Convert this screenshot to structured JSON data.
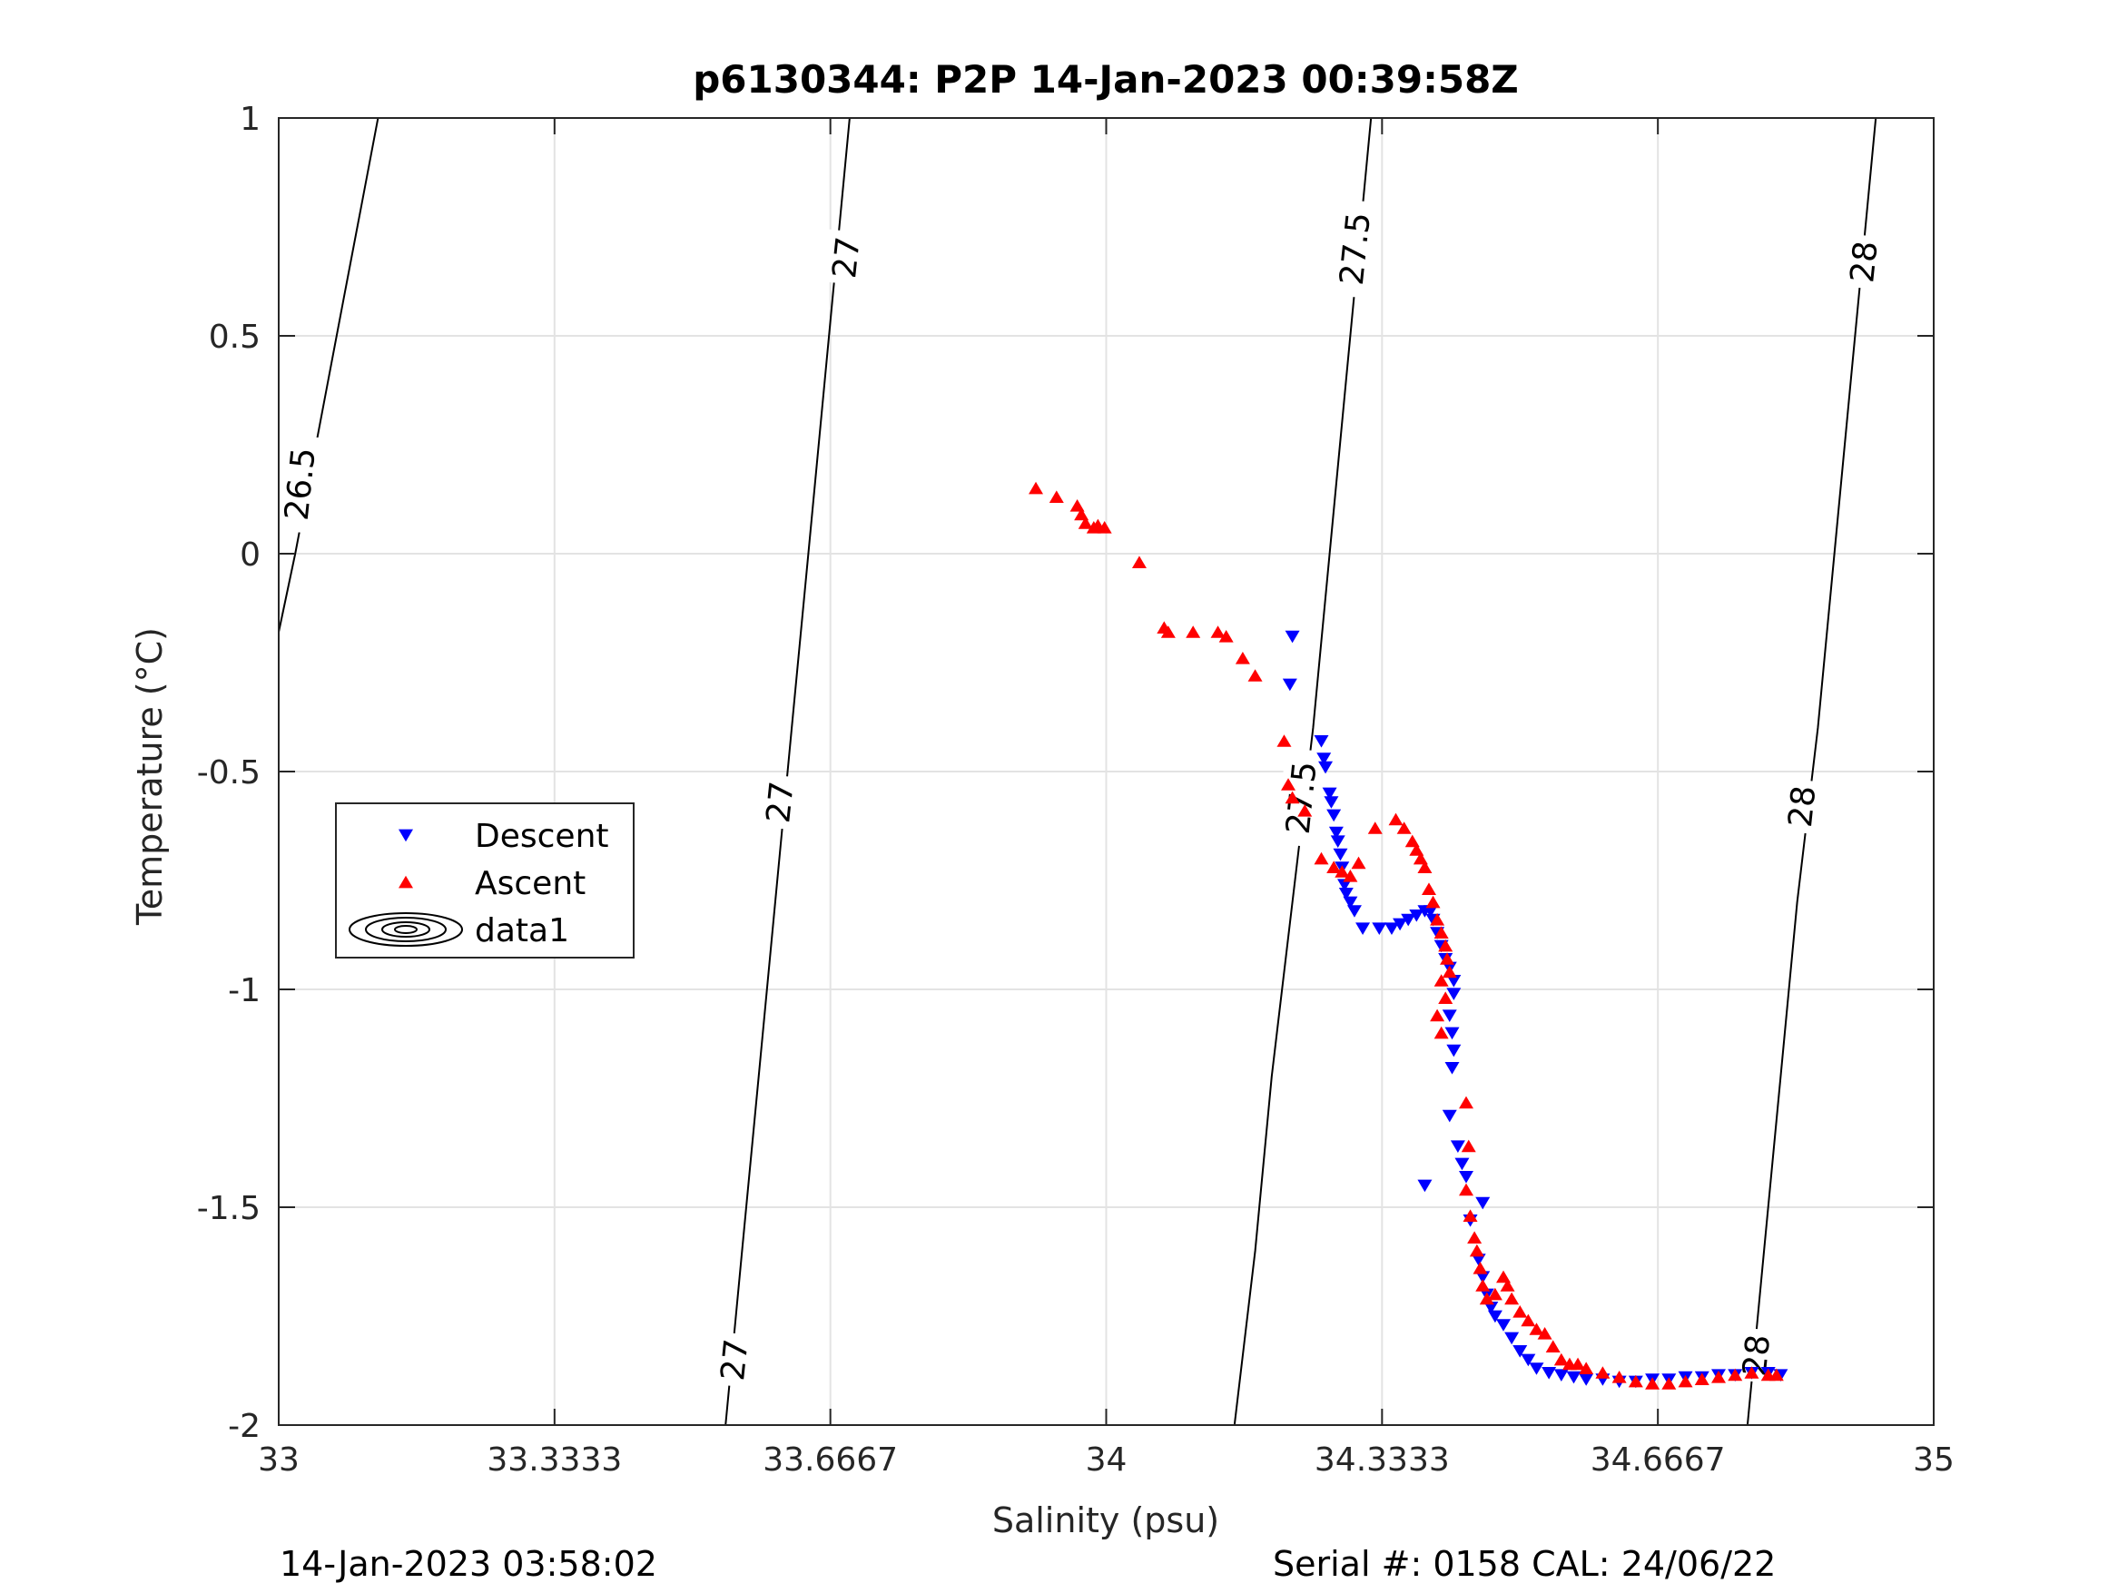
{
  "chart_data": {
    "type": "scatter",
    "title": "p6130344: P2P 14-Jan-2023 00:39:58Z",
    "xlabel": "Salinity (psu)",
    "ylabel": "Temperature (°C)",
    "xlim": [
      33,
      35
    ],
    "ylim": [
      -2,
      1
    ],
    "xticks": [
      "33",
      "33.3333",
      "33.6667",
      "34",
      "34.3333",
      "34.6667",
      "35"
    ],
    "yticks": [
      "-2",
      "-1.5",
      "-1",
      "-0.5",
      "0",
      "0.5",
      "1"
    ],
    "grid": true,
    "legend_placement": "middle-left",
    "footer_left": "14-Jan-2023 03:58:02",
    "footer_right": "Serial #: 0158  CAL: 24/06/22",
    "contours": [
      {
        "label": "26.5",
        "points": [
          [
            33.0,
            -0.18
          ],
          [
            33.02,
            0.0
          ],
          [
            33.04,
            0.2
          ],
          [
            33.06,
            0.4
          ],
          [
            33.08,
            0.6
          ],
          [
            33.1,
            0.8
          ],
          [
            33.12,
            1.0
          ]
        ]
      },
      {
        "label": "27",
        "points": [
          [
            33.54,
            -2.0
          ],
          [
            33.56,
            -1.6
          ],
          [
            33.58,
            -1.2
          ],
          [
            33.6,
            -0.8
          ],
          [
            33.62,
            -0.4
          ],
          [
            33.64,
            0.0
          ],
          [
            33.66,
            0.4
          ],
          [
            33.68,
            0.8
          ],
          [
            33.69,
            1.0
          ]
        ]
      },
      {
        "label": "27.5",
        "points": [
          [
            34.155,
            -2.0
          ],
          [
            34.18,
            -1.6
          ],
          [
            34.2,
            -1.2
          ],
          [
            34.225,
            -0.8
          ],
          [
            34.25,
            -0.4
          ],
          [
            34.27,
            0.0
          ],
          [
            34.29,
            0.4
          ],
          [
            34.31,
            0.8
          ],
          [
            34.32,
            1.0
          ]
        ]
      },
      {
        "label": "28",
        "points": [
          [
            34.775,
            -2.0
          ],
          [
            34.795,
            -1.6
          ],
          [
            34.815,
            -1.2
          ],
          [
            34.835,
            -0.8
          ],
          [
            34.86,
            -0.4
          ],
          [
            34.88,
            0.0
          ],
          [
            34.9,
            0.4
          ],
          [
            34.92,
            0.8
          ],
          [
            34.93,
            1.0
          ]
        ]
      }
    ],
    "contour_labels": [
      {
        "text": "26.5",
        "x": 33.025,
        "y": 0.16
      },
      {
        "text": "27",
        "x": 33.685,
        "y": 0.68
      },
      {
        "text": "27",
        "x": 33.605,
        "y": -0.57
      },
      {
        "text": "27",
        "x": 33.55,
        "y": -1.85
      },
      {
        "text": "27.5",
        "x": 34.3,
        "y": 0.7
      },
      {
        "text": "27.5",
        "x": 34.235,
        "y": -0.56
      },
      {
        "text": "28",
        "x": 34.915,
        "y": 0.67
      },
      {
        "text": "28",
        "x": 34.84,
        "y": -0.58
      },
      {
        "text": "28",
        "x": 34.785,
        "y": -1.84
      }
    ],
    "series": [
      {
        "name": "Descent",
        "marker": "triangle-down",
        "color": "#0000ff",
        "points": [
          [
            34.225,
            -0.19
          ],
          [
            34.222,
            -0.3
          ],
          [
            34.26,
            -0.43
          ],
          [
            34.263,
            -0.47
          ],
          [
            34.265,
            -0.49
          ],
          [
            34.27,
            -0.55
          ],
          [
            34.272,
            -0.57
          ],
          [
            34.275,
            -0.6
          ],
          [
            34.278,
            -0.64
          ],
          [
            34.28,
            -0.66
          ],
          [
            34.283,
            -0.69
          ],
          [
            34.285,
            -0.72
          ],
          [
            34.288,
            -0.76
          ],
          [
            34.29,
            -0.78
          ],
          [
            34.295,
            -0.8
          ],
          [
            34.3,
            -0.82
          ],
          [
            34.31,
            -0.86
          ],
          [
            34.33,
            -0.86
          ],
          [
            34.345,
            -0.86
          ],
          [
            34.355,
            -0.85
          ],
          [
            34.365,
            -0.84
          ],
          [
            34.375,
            -0.83
          ],
          [
            34.385,
            -0.82
          ],
          [
            34.392,
            -0.82
          ],
          [
            34.395,
            -0.84
          ],
          [
            34.4,
            -0.87
          ],
          [
            34.405,
            -0.9
          ],
          [
            34.41,
            -0.93
          ],
          [
            34.415,
            -0.95
          ],
          [
            34.42,
            -0.98
          ],
          [
            34.42,
            -1.01
          ],
          [
            34.415,
            -1.06
          ],
          [
            34.418,
            -1.1
          ],
          [
            34.42,
            -1.14
          ],
          [
            34.418,
            -1.18
          ],
          [
            34.415,
            -1.29
          ],
          [
            34.425,
            -1.36
          ],
          [
            34.43,
            -1.4
          ],
          [
            34.435,
            -1.43
          ],
          [
            34.44,
            -1.53
          ],
          [
            34.455,
            -1.49
          ],
          [
            34.385,
            -1.45
          ],
          [
            34.45,
            -1.62
          ],
          [
            34.455,
            -1.66
          ],
          [
            34.46,
            -1.7
          ],
          [
            34.465,
            -1.73
          ],
          [
            34.47,
            -1.75
          ],
          [
            34.48,
            -1.77
          ],
          [
            34.49,
            -1.8
          ],
          [
            34.5,
            -1.83
          ],
          [
            34.51,
            -1.85
          ],
          [
            34.52,
            -1.87
          ],
          [
            34.535,
            -1.88
          ],
          [
            34.55,
            -1.885
          ],
          [
            34.565,
            -1.89
          ],
          [
            34.58,
            -1.895
          ],
          [
            34.6,
            -1.895
          ],
          [
            34.62,
            -1.9
          ],
          [
            34.64,
            -1.9
          ],
          [
            34.66,
            -1.895
          ],
          [
            34.68,
            -1.895
          ],
          [
            34.7,
            -1.89
          ],
          [
            34.72,
            -1.89
          ],
          [
            34.74,
            -1.885
          ],
          [
            34.76,
            -1.885
          ],
          [
            34.78,
            -1.88
          ],
          [
            34.8,
            -1.88
          ],
          [
            34.815,
            -1.885
          ]
        ]
      },
      {
        "name": "Ascent",
        "marker": "triangle-up",
        "color": "#ff0000",
        "points": [
          [
            33.915,
            0.15
          ],
          [
            33.94,
            0.13
          ],
          [
            33.965,
            0.11
          ],
          [
            33.97,
            0.09
          ],
          [
            33.975,
            0.07
          ],
          [
            33.985,
            0.06
          ],
          [
            33.99,
            0.065
          ],
          [
            33.998,
            0.06
          ],
          [
            34.04,
            -0.02
          ],
          [
            34.07,
            -0.17
          ],
          [
            34.075,
            -0.18
          ],
          [
            34.105,
            -0.18
          ],
          [
            34.135,
            -0.18
          ],
          [
            34.145,
            -0.19
          ],
          [
            34.165,
            -0.24
          ],
          [
            34.18,
            -0.28
          ],
          [
            34.215,
            -0.43
          ],
          [
            34.22,
            -0.53
          ],
          [
            34.225,
            -0.56
          ],
          [
            34.24,
            -0.59
          ],
          [
            34.26,
            -0.7
          ],
          [
            34.275,
            -0.72
          ],
          [
            34.285,
            -0.73
          ],
          [
            34.295,
            -0.74
          ],
          [
            34.305,
            -0.71
          ],
          [
            34.325,
            -0.63
          ],
          [
            34.35,
            -0.61
          ],
          [
            34.36,
            -0.63
          ],
          [
            34.37,
            -0.66
          ],
          [
            34.375,
            -0.68
          ],
          [
            34.38,
            -0.7
          ],
          [
            34.385,
            -0.72
          ],
          [
            34.39,
            -0.77
          ],
          [
            34.395,
            -0.8
          ],
          [
            34.4,
            -0.84
          ],
          [
            34.405,
            -0.87
          ],
          [
            34.41,
            -0.9
          ],
          [
            34.412,
            -0.93
          ],
          [
            34.415,
            -0.96
          ],
          [
            34.405,
            -0.98
          ],
          [
            34.41,
            -1.02
          ],
          [
            34.4,
            -1.06
          ],
          [
            34.405,
            -1.1
          ],
          [
            34.435,
            -1.26
          ],
          [
            34.438,
            -1.36
          ],
          [
            34.435,
            -1.46
          ],
          [
            34.44,
            -1.52
          ],
          [
            34.445,
            -1.57
          ],
          [
            34.448,
            -1.6
          ],
          [
            34.452,
            -1.64
          ],
          [
            34.455,
            -1.68
          ],
          [
            34.46,
            -1.71
          ],
          [
            34.47,
            -1.7
          ],
          [
            34.48,
            -1.66
          ],
          [
            34.485,
            -1.68
          ],
          [
            34.49,
            -1.71
          ],
          [
            34.5,
            -1.74
          ],
          [
            34.51,
            -1.76
          ],
          [
            34.52,
            -1.78
          ],
          [
            34.53,
            -1.79
          ],
          [
            34.54,
            -1.82
          ],
          [
            34.55,
            -1.85
          ],
          [
            34.56,
            -1.86
          ],
          [
            34.57,
            -1.86
          ],
          [
            34.58,
            -1.87
          ],
          [
            34.6,
            -1.88
          ],
          [
            34.62,
            -1.89
          ],
          [
            34.64,
            -1.9
          ],
          [
            34.66,
            -1.905
          ],
          [
            34.68,
            -1.905
          ],
          [
            34.7,
            -1.9
          ],
          [
            34.72,
            -1.895
          ],
          [
            34.74,
            -1.89
          ],
          [
            34.76,
            -1.885
          ],
          [
            34.78,
            -1.88
          ],
          [
            34.8,
            -1.885
          ],
          [
            34.81,
            -1.885
          ]
        ]
      }
    ],
    "legend": [
      {
        "label": "Descent",
        "symbol": "triangle-down",
        "color": "#0000ff"
      },
      {
        "label": "Ascent",
        "symbol": "triangle-up",
        "color": "#ff0000"
      },
      {
        "label": "data1",
        "symbol": "contour",
        "color": "#000000"
      }
    ]
  }
}
